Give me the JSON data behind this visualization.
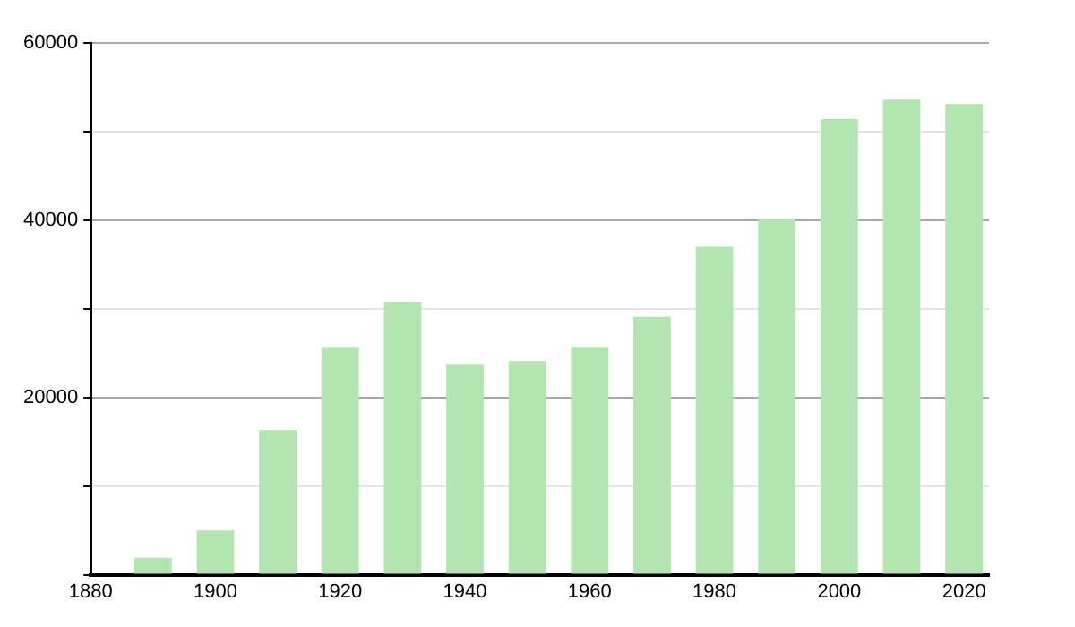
{
  "chart_data": {
    "type": "bar",
    "x": [
      1890,
      1900,
      1910,
      1920,
      1930,
      1940,
      1950,
      1960,
      1970,
      1980,
      1990,
      2000,
      2010,
      2020
    ],
    "values": [
      1900,
      5000,
      16300,
      25700,
      30800,
      23800,
      24100,
      25700,
      29100,
      37000,
      40100,
      51400,
      53600,
      53100
    ],
    "color": "#b3e5b0",
    "xlim": [
      1880,
      2024
    ],
    "xticks": [
      1880,
      1900,
      1920,
      1940,
      1960,
      1980,
      2000,
      2020
    ],
    "ylim": [
      0,
      60000
    ],
    "yticks": [
      {
        "value": 0,
        "label": null
      },
      {
        "value": 10000,
        "label": null
      },
      20000,
      {
        "value": 30000,
        "label": null
      },
      40000,
      {
        "value": 50000,
        "label": null
      },
      60000
    ],
    "grid": "y",
    "legend": false
  }
}
